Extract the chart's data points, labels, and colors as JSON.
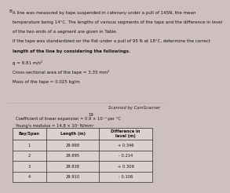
{
  "bg_color_top": "#cfc0c0",
  "bg_color_bottom": "#c8baba",
  "divider_color": "#c0aeae",
  "divider_line_color": "#b8a8a8",
  "text_color": "#1a1010",
  "top_text_lines": [
    "A line was measured by tape suspended in catenary under a pull of 145N, the mean",
    "temperature being 14°C. The lengths of various segments of the tape and the difference in level",
    "of the two ends of a segment are given in Table.",
    "If the tape was standardized on the flat under a pull of 95 N at 18°C, determine the correct",
    "length of the line by considering the followings.",
    "g = 9.81 m/s²",
    "Cross-sectional area of the tape = 3.35 mm²",
    "Mass of the tape = 0.025 kg/m"
  ],
  "bold_line_prefix": "length of the line",
  "scanner_text": "Scanned by CamScanner",
  "page_number": "19",
  "bottom_text_lines": [
    "Coefficient of linear expansion = 0.9 × 10⁻⁶ per °C",
    "Young's modulus = 14.8 × 10⁴ N/mm²"
  ],
  "table_headers": [
    "Bay/Span",
    "Length (m)",
    "Difference in\nlevel (m)"
  ],
  "table_data": [
    [
      "1",
      "29.988",
      "+ 0.346"
    ],
    [
      "2",
      "29.895",
      "- 0.214"
    ],
    [
      "3",
      "29.838",
      "+ 0.309"
    ],
    [
      "4",
      "29.910",
      "- 0.106"
    ]
  ]
}
